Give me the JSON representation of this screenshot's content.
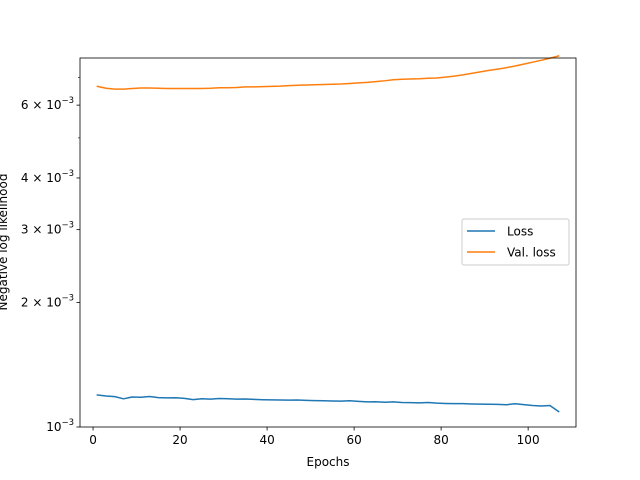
{
  "chart_data": {
    "type": "line",
    "title": "",
    "xlabel": "Epochs",
    "ylabel": "Negative log likelihood",
    "xlim": [
      -3,
      111
    ],
    "ylim": [
      0.001,
      0.0078
    ],
    "yscale": "log",
    "grid": false,
    "legend_position": "center-right",
    "x_ticks": [
      0,
      20,
      40,
      60,
      80,
      100
    ],
    "x_tick_labels": [
      "0",
      "20",
      "40",
      "60",
      "80",
      "100"
    ],
    "y_ticks": [
      {
        "value": 0.001,
        "mantissa": "",
        "exponent": "−3",
        "label": "10^-3"
      },
      {
        "value": 0.002,
        "mantissa": "2",
        "exponent": "−3",
        "label": "2 × 10^-3"
      },
      {
        "value": 0.003,
        "mantissa": "3",
        "exponent": "−3",
        "label": "3 × 10^-3"
      },
      {
        "value": 0.004,
        "mantissa": "4",
        "exponent": "−3",
        "label": "4 × 10^-3"
      },
      {
        "value": 0.006,
        "mantissa": "6",
        "exponent": "−3",
        "label": "6 × 10^-3"
      }
    ],
    "y_minor_ticks": [
      0.005,
      0.007
    ],
    "series": [
      {
        "name": "Loss",
        "color": "#1f77b4",
        "x": [
          1,
          3,
          5,
          7,
          9,
          11,
          13,
          15,
          17,
          19,
          21,
          23,
          25,
          27,
          29,
          31,
          33,
          35,
          37,
          39,
          41,
          43,
          45,
          47,
          49,
          51,
          53,
          55,
          57,
          59,
          61,
          63,
          65,
          67,
          69,
          71,
          73,
          75,
          77,
          79,
          81,
          83,
          85,
          87,
          89,
          91,
          93,
          95,
          97,
          99,
          101,
          103,
          105,
          107
        ],
        "y": [
          0.001195,
          0.001188,
          0.001184,
          0.00117,
          0.001182,
          0.00118,
          0.001185,
          0.001178,
          0.001176,
          0.001177,
          0.001173,
          0.001165,
          0.00117,
          0.001168,
          0.001172,
          0.00117,
          0.001168,
          0.001169,
          0.001166,
          0.001164,
          0.001163,
          0.001162,
          0.001161,
          0.001162,
          0.00116,
          0.001158,
          0.001157,
          0.001156,
          0.001155,
          0.001157,
          0.001153,
          0.00115,
          0.001151,
          0.001148,
          0.00115,
          0.001146,
          0.001145,
          0.001144,
          0.001146,
          0.001142,
          0.00114,
          0.001139,
          0.001139,
          0.001137,
          0.001136,
          0.001135,
          0.001134,
          0.001132,
          0.001138,
          0.001133,
          0.001127,
          0.001124,
          0.001127,
          0.00109
        ]
      },
      {
        "name": "Val. loss",
        "color": "#ff7f0e",
        "x": [
          1,
          3,
          5,
          7,
          9,
          11,
          13,
          15,
          17,
          19,
          21,
          23,
          25,
          27,
          29,
          31,
          33,
          35,
          37,
          39,
          41,
          43,
          45,
          47,
          49,
          51,
          53,
          55,
          57,
          59,
          61,
          63,
          65,
          67,
          69,
          71,
          73,
          75,
          77,
          79,
          81,
          83,
          85,
          87,
          89,
          91,
          93,
          95,
          97,
          99,
          101,
          103,
          105,
          107
        ],
        "y": [
          0.00666,
          0.00659,
          0.00656,
          0.00656,
          0.00658,
          0.0066,
          0.0066,
          0.00659,
          0.00658,
          0.00658,
          0.00658,
          0.00658,
          0.00658,
          0.00659,
          0.00661,
          0.00661,
          0.00662,
          0.00664,
          0.00664,
          0.00665,
          0.00666,
          0.00667,
          0.00669,
          0.0067,
          0.00671,
          0.00672,
          0.00673,
          0.00674,
          0.00675,
          0.00677,
          0.00679,
          0.00681,
          0.00684,
          0.00687,
          0.00691,
          0.00693,
          0.00694,
          0.00695,
          0.00697,
          0.00698,
          0.00701,
          0.00705,
          0.0071,
          0.00716,
          0.00722,
          0.00728,
          0.00733,
          0.00739,
          0.00746,
          0.00754,
          0.00762,
          0.0077,
          0.00779,
          0.00789
        ]
      }
    ]
  }
}
